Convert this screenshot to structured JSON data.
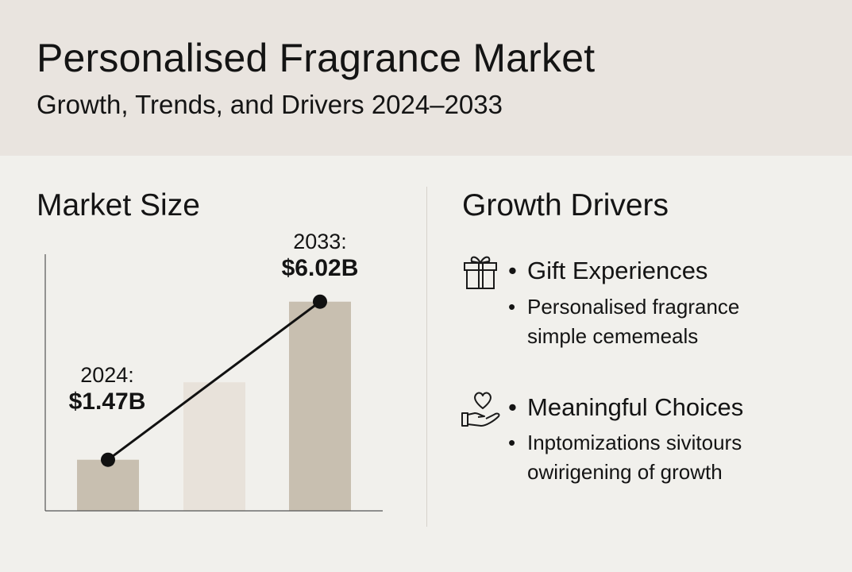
{
  "header": {
    "title": "Personalised Fragrance Market",
    "subtitle": "Growth, Trends, and Drivers 2024–2033"
  },
  "market": {
    "heading": "Market Size"
  },
  "chart_data": {
    "type": "bar",
    "categories": [
      "2024",
      "",
      "2033"
    ],
    "values": [
      1.47,
      3.7,
      6.02
    ],
    "line_overlay": {
      "points": [
        [
          "2024",
          1.47
        ],
        [
          "2033",
          6.02
        ]
      ]
    },
    "annotations": [
      {
        "year": "2024:",
        "value": "$1.47B"
      },
      {
        "year": "2033:",
        "value": "$6.02B"
      }
    ],
    "ylim": [
      0,
      7.5
    ],
    "grid": false,
    "colors": {
      "bar_dark": "#c8bfb0",
      "bar_light": "#e8e2da",
      "line": "#111111"
    }
  },
  "drivers": {
    "heading": "Growth Drivers",
    "items": [
      {
        "icon": "gift-icon",
        "title": "Gift Experiences",
        "detail": [
          "Personalised fragrance",
          "simple cememeals"
        ]
      },
      {
        "icon": "heart-hand-icon",
        "title": "Meaningful Choices",
        "detail": [
          "Inptomizations sivitours",
          "owirigening of growth"
        ]
      }
    ]
  }
}
